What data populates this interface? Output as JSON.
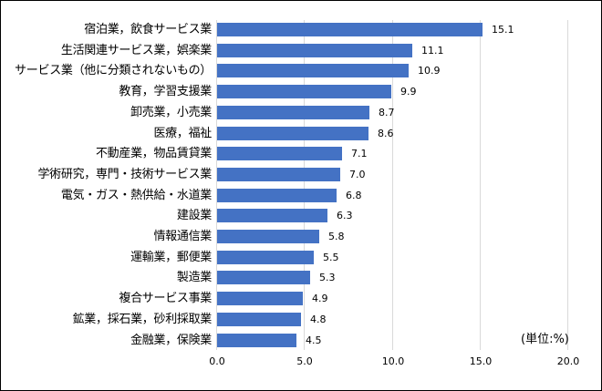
{
  "chart_data": {
    "type": "bar",
    "orientation": "horizontal",
    "title": "",
    "xlabel": "",
    "ylabel": "",
    "unit_label": "(単位:%)",
    "xlim": [
      0,
      20
    ],
    "x_ticks": [
      "0.0",
      "5.0",
      "10.0",
      "15.0",
      "20.0"
    ],
    "grid": true,
    "bar_color": "#4472c4",
    "categories": [
      "宿泊業，飲食サービス業",
      "生活関連サービス業，娯楽業",
      "サービス業（他に分類されないもの）",
      "教育，学習支援業",
      "卸売業，小売業",
      "医療，福祉",
      "不動産業，物品賃貸業",
      "学術研究，専門・技術サービス業",
      "電気・ガス・熱供給・水道業",
      "建設業",
      "情報通信業",
      "運輸業，郵便業",
      "製造業",
      "複合サービス事業",
      "鉱業，採石業，砂利採取業",
      "金融業，保険業"
    ],
    "values": [
      15.1,
      11.1,
      10.9,
      9.9,
      8.7,
      8.6,
      7.1,
      7.0,
      6.8,
      6.3,
      5.8,
      5.5,
      5.3,
      4.9,
      4.8,
      4.5
    ],
    "value_labels": [
      "15.1",
      "11.1",
      "10.9",
      "9.9",
      "8.7",
      "8.6",
      "7.1",
      "7.0",
      "6.8",
      "6.3",
      "5.8",
      "5.5",
      "5.3",
      "4.9",
      "4.8",
      "4.5"
    ]
  }
}
